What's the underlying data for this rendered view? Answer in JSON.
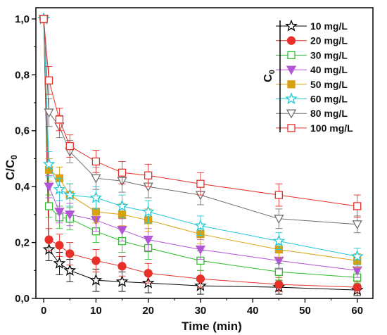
{
  "chart_data": {
    "type": "line",
    "xlabel": "Time (min)",
    "ylabel": "C/C",
    "ylabel_sub": "0",
    "xlim": [
      -1.5,
      63
    ],
    "ylim": [
      0,
      1.04
    ],
    "x_ticks": [
      0,
      10,
      20,
      30,
      40,
      50,
      60
    ],
    "x_tick_labels": [
      "0",
      "10",
      "20",
      "30",
      "40",
      "50",
      "60"
    ],
    "y_ticks": [
      0,
      0.2,
      0.4,
      0.6,
      0.8,
      1.0
    ],
    "y_tick_labels": [
      "0,0",
      "0,2",
      "0,4",
      "0,6",
      "0,8",
      "1,0"
    ],
    "legend_title": "C",
    "legend_title_sub": "0",
    "legend_placement": "top-right",
    "grid": false,
    "x": [
      0,
      1,
      3,
      5,
      10,
      15,
      20,
      30,
      45,
      60
    ],
    "series": [
      {
        "name": "10 mg/L",
        "marker": "star",
        "color": "#000000",
        "filled": false,
        "values": [
          1.0,
          0.175,
          0.125,
          0.1,
          0.065,
          0.06,
          0.055,
          0.045,
          0.04,
          0.03
        ],
        "errors": [
          0,
          0.04,
          0.04,
          0.04,
          0.04,
          0.035,
          0.035,
          0.03,
          0.025,
          0.02
        ]
      },
      {
        "name": "20 mg/L",
        "marker": "circle",
        "color": "#e8302a",
        "filled": true,
        "values": [
          1.0,
          0.21,
          0.19,
          0.16,
          0.135,
          0.115,
          0.09,
          0.07,
          0.05,
          0.04
        ],
        "errors": [
          0,
          0.04,
          0.04,
          0.04,
          0.04,
          0.035,
          0.035,
          0.03,
          0.025,
          0.02
        ]
      },
      {
        "name": "30 mg/L",
        "marker": "square",
        "color": "#2fbf2f",
        "filled": false,
        "values": [
          1.0,
          0.33,
          0.29,
          0.285,
          0.24,
          0.205,
          0.18,
          0.135,
          0.095,
          0.075
        ],
        "errors": [
          0,
          0.04,
          0.04,
          0.04,
          0.04,
          0.04,
          0.04,
          0.035,
          0.03,
          0.02
        ]
      },
      {
        "name": "40 mg/L",
        "marker": "triangle-down",
        "color": "#b354d6",
        "filled": true,
        "values": [
          1.0,
          0.4,
          0.31,
          0.3,
          0.28,
          0.245,
          0.21,
          0.175,
          0.135,
          0.1
        ],
        "errors": [
          0,
          0.04,
          0.04,
          0.04,
          0.04,
          0.04,
          0.04,
          0.035,
          0.03,
          0.025
        ]
      },
      {
        "name": "50 mg/L",
        "marker": "square",
        "color": "#d9a010",
        "filled": true,
        "values": [
          1.0,
          0.46,
          0.43,
          0.37,
          0.31,
          0.3,
          0.28,
          0.23,
          0.175,
          0.135
        ],
        "errors": [
          0,
          0.04,
          0.04,
          0.04,
          0.04,
          0.04,
          0.04,
          0.035,
          0.03,
          0.025
        ]
      },
      {
        "name": "60 mg/L",
        "marker": "star",
        "color": "#22c8d8",
        "filled": false,
        "values": [
          1.0,
          0.48,
          0.39,
          0.37,
          0.36,
          0.33,
          0.31,
          0.26,
          0.205,
          0.15
        ],
        "errors": [
          0,
          0.045,
          0.04,
          0.04,
          0.04,
          0.04,
          0.04,
          0.035,
          0.03,
          0.03
        ]
      },
      {
        "name": "80 mg/L",
        "marker": "triangle-down",
        "color": "#707070",
        "filled": false,
        "values": [
          1.0,
          0.665,
          0.615,
          0.525,
          0.43,
          0.42,
          0.4,
          0.37,
          0.285,
          0.265
        ],
        "errors": [
          0,
          0.05,
          0.04,
          0.04,
          0.04,
          0.04,
          0.04,
          0.035,
          0.035,
          0.03
        ]
      },
      {
        "name": "100 mg/L",
        "marker": "square",
        "color": "#e8302a",
        "filled": false,
        "values": [
          1.0,
          0.78,
          0.64,
          0.545,
          0.49,
          0.45,
          0.44,
          0.41,
          0.37,
          0.33
        ],
        "errors": [
          0,
          0.05,
          0.04,
          0.04,
          0.04,
          0.04,
          0.04,
          0.04,
          0.04,
          0.04
        ]
      }
    ]
  }
}
